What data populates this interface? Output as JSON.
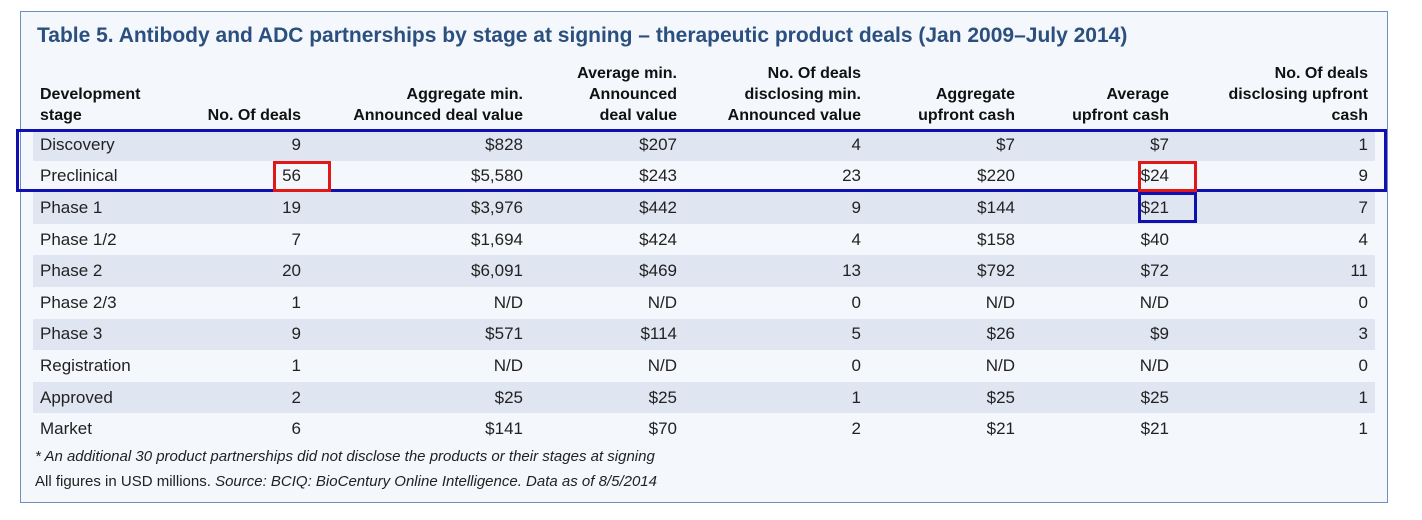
{
  "title": "Table 5. Antibody and ADC partnerships by stage at signing – therapeutic product deals (Jan 2009–July 2014)",
  "headers": [
    [
      "Development",
      "stage"
    ],
    [
      "No. Of deals"
    ],
    [
      "Aggregate min.",
      "Announced deal value"
    ],
    [
      "Average min.",
      "Announced",
      "deal value"
    ],
    [
      "No. Of deals",
      "disclosing min.",
      "Announced value"
    ],
    [
      "Aggregate",
      "upfront cash"
    ],
    [
      "Average",
      "upfront cash"
    ],
    [
      "No. Of deals",
      "disclosing upfront",
      "cash"
    ]
  ],
  "rows": [
    [
      "Discovery",
      "9",
      "$828",
      "$207",
      "4",
      "$7",
      "$7",
      "1"
    ],
    [
      "Preclinical",
      "56",
      "$5,580",
      "$243",
      "23",
      "$220",
      "$24",
      "9"
    ],
    [
      "Phase 1",
      "19",
      "$3,976",
      "$442",
      "9",
      "$144",
      "$21",
      "7"
    ],
    [
      "Phase 1/2",
      "7",
      "$1,694",
      "$424",
      "4",
      "$158",
      "$40",
      "4"
    ],
    [
      "Phase 2",
      "20",
      "$6,091",
      "$469",
      "13",
      "$792",
      "$72",
      "11"
    ],
    [
      "Phase 2/3",
      "1",
      "N/D",
      "N/D",
      "0",
      "N/D",
      "N/D",
      "0"
    ],
    [
      "Phase 3",
      "9",
      "$571",
      "$114",
      "5",
      "$26",
      "$9",
      "3"
    ],
    [
      "Registration",
      "1",
      "N/D",
      "N/D",
      "0",
      "N/D",
      "N/D",
      "0"
    ],
    [
      "Approved",
      "2",
      "$25",
      "$25",
      "1",
      "$25",
      "$25",
      "1"
    ],
    [
      "Market",
      "6",
      "$141",
      "$70",
      "2",
      "$21",
      "$21",
      "1"
    ]
  ],
  "footnote": "* An additional 30 product partnerships did not disclose the products or their stages at signing",
  "source_prefix": "All figures in USD millions. ",
  "source_italic": "Source: BCIQ: BioCentury Online Intelligence. Data as of 8/5/2014",
  "colors": {
    "title": "#2b4f7e",
    "stripe": "#dfe6f1",
    "highlight_blue": "#1010b0",
    "highlight_red": "#e01818"
  }
}
